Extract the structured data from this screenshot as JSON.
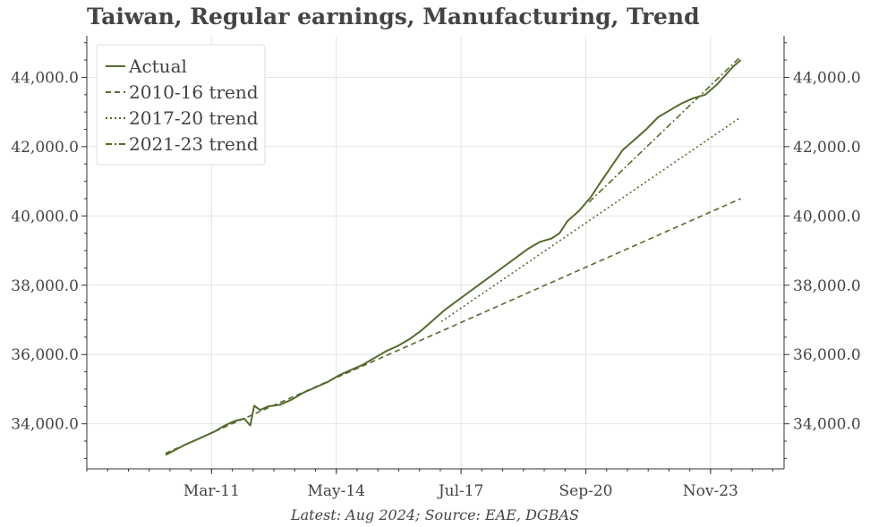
{
  "chart_data": {
    "type": "line",
    "title": "Taiwan, Regular earnings, Manufacturing, Trend",
    "source_note": "Latest: Aug 2024; Source: EAE, DGBAS",
    "xlabel": "",
    "ylabel": "",
    "x_range": [
      2008.0,
      2025.7
    ],
    "ylim": [
      32700,
      45200
    ],
    "y_ticks": [
      34000,
      36000,
      38000,
      40000,
      42000,
      44000
    ],
    "y_tick_labels": [
      "34,000.0",
      "36,000.0",
      "38,000.0",
      "40,000.0",
      "42,000.0",
      "44,000.0"
    ],
    "x_ticks": [
      2011.167,
      2014.333,
      2017.5,
      2020.667,
      2023.833
    ],
    "x_tick_labels": [
      "Mar-11",
      "May-14",
      "Jul-17",
      "Sep-20",
      "Nov-23"
    ],
    "grid": true,
    "legend_position": "top-left",
    "series": [
      {
        "name": "Actual",
        "style": "solid",
        "color": "#556b2f",
        "x": [
          2010.0,
          2010.25,
          2010.5,
          2010.75,
          2011.0,
          2011.25,
          2011.5,
          2011.75,
          2012.0,
          2012.15,
          2012.25,
          2012.4,
          2012.6,
          2012.9,
          2013.2,
          2013.5,
          2013.8,
          2014.1,
          2014.4,
          2014.7,
          2015.0,
          2015.3,
          2015.6,
          2015.9,
          2016.2,
          2016.5,
          2016.8,
          2017.1,
          2017.4,
          2017.7,
          2018.0,
          2018.3,
          2018.6,
          2018.9,
          2019.2,
          2019.5,
          2019.8,
          2020.0,
          2020.2,
          2020.5,
          2020.8,
          2021.0,
          2021.3,
          2021.6,
          2021.9,
          2022.2,
          2022.5,
          2022.8,
          2023.1,
          2023.4,
          2023.7,
          2024.0,
          2024.2,
          2024.4,
          2024.6
        ],
        "y": [
          33100,
          33250,
          33400,
          33520,
          33650,
          33780,
          33950,
          34080,
          34150,
          33950,
          34520,
          34400,
          34500,
          34550,
          34700,
          34900,
          35050,
          35200,
          35400,
          35550,
          35700,
          35900,
          36100,
          36250,
          36450,
          36700,
          37000,
          37300,
          37550,
          37800,
          38050,
          38300,
          38550,
          38800,
          39050,
          39250,
          39350,
          39500,
          39850,
          40150,
          40550,
          40900,
          41400,
          41900,
          42200,
          42500,
          42850,
          43050,
          43250,
          43400,
          43500,
          43800,
          44050,
          44300,
          44500
        ]
      },
      {
        "name": "2010-16 trend",
        "style": "dashed",
        "color": "#556b2f",
        "x": [
          2010.0,
          2024.6
        ],
        "y": [
          33150,
          40500
        ]
      },
      {
        "name": "2017-20 trend",
        "style": "dotted",
        "color": "#556b2f",
        "x": [
          2017.0,
          2024.6
        ],
        "y": [
          36950,
          42850
        ]
      },
      {
        "name": "2021-23 trend",
        "style": "dashdot",
        "color": "#556b2f",
        "x": [
          2020.75,
          2024.6
        ],
        "y": [
          40400,
          44600
        ]
      }
    ]
  }
}
